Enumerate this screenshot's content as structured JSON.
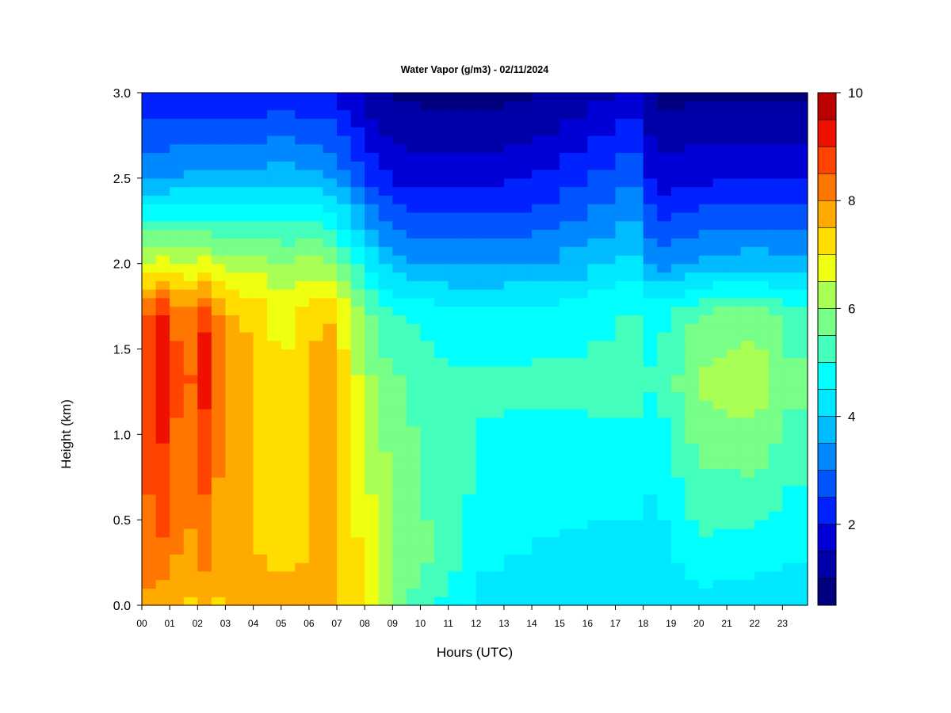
{
  "chart_data": {
    "type": "heatmap",
    "title": "Water Vapor (g/m3) - 02/11/2024",
    "xlabel": "Hours (UTC)",
    "ylabel": "Height (km)",
    "xlim": [
      0,
      23.9
    ],
    "ylim": [
      0,
      3
    ],
    "x_tick_values": [
      0,
      1,
      2,
      3,
      4,
      5,
      6,
      7,
      8,
      9,
      10,
      11,
      12,
      13,
      14,
      15,
      16,
      17,
      18,
      19,
      20,
      21,
      22,
      23
    ],
    "x_tick_labels": [
      "00",
      "01",
      "02",
      "03",
      "04",
      "05",
      "06",
      "07",
      "08",
      "09",
      "10",
      "11",
      "12",
      "13",
      "14",
      "15",
      "16",
      "17",
      "18",
      "19",
      "20",
      "21",
      "22",
      "23"
    ],
    "y_tick_values": [
      0,
      0.5,
      1,
      1.5,
      2,
      2.5,
      3
    ],
    "y_tick_labels": [
      "0.0",
      "0.5",
      "1.0",
      "1.5",
      "2.0",
      "2.5",
      "3.0"
    ],
    "colorbar": {
      "min": 0.5,
      "max": 10,
      "levels": [
        0.5,
        1,
        1.5,
        2,
        2.5,
        3,
        3.5,
        4,
        4.5,
        5,
        5.5,
        6,
        6.5,
        7,
        7.5,
        8,
        8.5,
        9,
        9.5,
        10
      ],
      "tick_values": [
        2,
        4,
        6,
        8,
        10
      ],
      "tick_labels": [
        "2",
        "4",
        "6",
        "8",
        "10"
      ],
      "colors": [
        "#00007F",
        "#0000A8",
        "#0000D6",
        "#0022FF",
        "#0055FF",
        "#0088FF",
        "#00BBFF",
        "#00E8FF",
        "#00FFFF",
        "#44FFBB",
        "#77FF88",
        "#AAFF55",
        "#EEFF11",
        "#FFDD00",
        "#FFAA00",
        "#FF7700",
        "#FF4400",
        "#EE1100",
        "#BB0000",
        "#7F0000"
      ]
    },
    "time_hours": [
      0,
      0.5,
      1,
      1.5,
      2,
      2.5,
      3,
      3.5,
      4,
      4.5,
      5,
      5.5,
      6,
      6.5,
      7,
      7.5,
      8,
      8.5,
      9,
      9.5,
      10,
      10.5,
      11,
      11.5,
      12,
      13,
      14,
      15,
      16,
      17,
      18,
      18.5,
      19,
      19.5,
      20,
      20.5,
      21,
      21.5,
      22,
      22.5,
      23,
      23.9
    ],
    "profiles": [
      {
        "hour": 0,
        "heights_km": [
          0,
          0.3,
          1.3,
          1.7,
          2,
          2.5,
          3
        ],
        "values": [
          8,
          8.3,
          8.5,
          8.4,
          6.5,
          3.5,
          2
        ]
      },
      {
        "hour": 0.8,
        "heights_km": [
          0,
          0.3,
          1.3,
          1.7,
          2,
          2.5,
          3
        ],
        "values": [
          7.6,
          8.4,
          9.4,
          9.2,
          6.8,
          3.5,
          2
        ]
      },
      {
        "hour": 1.5,
        "heights_km": [
          0,
          0.3,
          1.3,
          1.7,
          2,
          2.5,
          3
        ],
        "values": [
          7.4,
          7.8,
          8.2,
          8,
          6.5,
          3.6,
          2
        ]
      },
      {
        "hour": 2.3,
        "heights_km": [
          0,
          0.3,
          1.3,
          1.7,
          2,
          2.5,
          3
        ],
        "values": [
          7.5,
          8.2,
          9.2,
          9,
          6.7,
          3.6,
          2
        ]
      },
      {
        "hour": 3,
        "heights_km": [
          0,
          0.3,
          1.3,
          1.7,
          2,
          2.5,
          3
        ],
        "values": [
          7.4,
          7.5,
          7.8,
          7.6,
          6.2,
          3.8,
          2
        ]
      },
      {
        "hour": 4,
        "heights_km": [
          0,
          0.3,
          1.3,
          1.7,
          2,
          2.5,
          3
        ],
        "values": [
          7.8,
          7.6,
          7.6,
          7.4,
          6.4,
          3.6,
          2
        ]
      },
      {
        "hour": 5,
        "heights_km": [
          0,
          0.3,
          1.3,
          1.7,
          2,
          2.5,
          3
        ],
        "values": [
          7.9,
          7.2,
          6.9,
          6.8,
          6,
          3.9,
          2.2
        ]
      },
      {
        "hour": 6,
        "heights_km": [
          0,
          0.3,
          1.3,
          1.7,
          2,
          2.5,
          3
        ],
        "values": [
          7.7,
          7.5,
          7.6,
          7.3,
          6.2,
          3.7,
          2
        ]
      },
      {
        "hour": 6.8,
        "heights_km": [
          0,
          0.3,
          1.3,
          1.7,
          2,
          2.5,
          3
        ],
        "values": [
          7.5,
          7.9,
          8,
          7.4,
          6,
          3.5,
          2
        ]
      },
      {
        "hour": 7.5,
        "heights_km": [
          0,
          0.3,
          1.3,
          1.7,
          2,
          2.5,
          3
        ],
        "values": [
          7.3,
          7.2,
          6.8,
          6.5,
          5.3,
          3,
          1.6
        ]
      },
      {
        "hour": 8.5,
        "heights_km": [
          0,
          0.3,
          1.3,
          1.7,
          2,
          2.5,
          3
        ],
        "values": [
          6.6,
          6.6,
          5.8,
          5.2,
          4,
          2.2,
          1
        ]
      },
      {
        "hour": 9.5,
        "heights_km": [
          0,
          0.3,
          1.3,
          1.7,
          2,
          2.5,
          3
        ],
        "values": [
          5.5,
          5.8,
          5.5,
          5,
          3.6,
          1.8,
          0.9
        ]
      },
      {
        "hour": 11,
        "heights_km": [
          0,
          0.3,
          1.3,
          1.7,
          2,
          2.5,
          3
        ],
        "values": [
          4.8,
          5.3,
          5.1,
          4.7,
          3.5,
          1.8,
          0.8
        ]
      },
      {
        "hour": 12.5,
        "heights_km": [
          0,
          0.3,
          1.3,
          1.7,
          2,
          2.5,
          3
        ],
        "values": [
          4.2,
          4.6,
          5.1,
          4.7,
          3.4,
          1.8,
          0.8
        ]
      },
      {
        "hour": 15,
        "heights_km": [
          0,
          0.3,
          1.3,
          1.7,
          2,
          2.5,
          3
        ],
        "values": [
          4.1,
          4.4,
          5.1,
          4.8,
          3.6,
          2.2,
          1
        ]
      },
      {
        "hour": 17.5,
        "heights_km": [
          0,
          0.3,
          1.3,
          1.7,
          2,
          2.5,
          3
        ],
        "values": [
          4,
          4.3,
          5.2,
          5,
          4.2,
          2.8,
          1.6
        ]
      },
      {
        "hour": 18.5,
        "heights_km": [
          0,
          0.3,
          1.3,
          1.7,
          2,
          2.5,
          3
        ],
        "values": [
          4,
          4.2,
          5,
          4.8,
          3.3,
          1.7,
          0.8
        ]
      },
      {
        "hour": 20,
        "heights_km": [
          0,
          0.3,
          1.3,
          1.7,
          2,
          2.5,
          3
        ],
        "values": [
          4.3,
          4.9,
          6.1,
          5.6,
          3.6,
          1.9,
          0.9
        ]
      },
      {
        "hour": 22,
        "heights_km": [
          0,
          0.3,
          1.3,
          1.7,
          2,
          2.5,
          3
        ],
        "values": [
          4.2,
          4.7,
          6.4,
          5.8,
          3.8,
          2,
          0.9
        ]
      },
      {
        "hour": 23.9,
        "heights_km": [
          0,
          0.3,
          1.3,
          1.7,
          2,
          2.5,
          3
        ],
        "values": [
          4.1,
          4.5,
          5.4,
          5.1,
          3.6,
          1.9,
          0.9
        ]
      }
    ]
  }
}
